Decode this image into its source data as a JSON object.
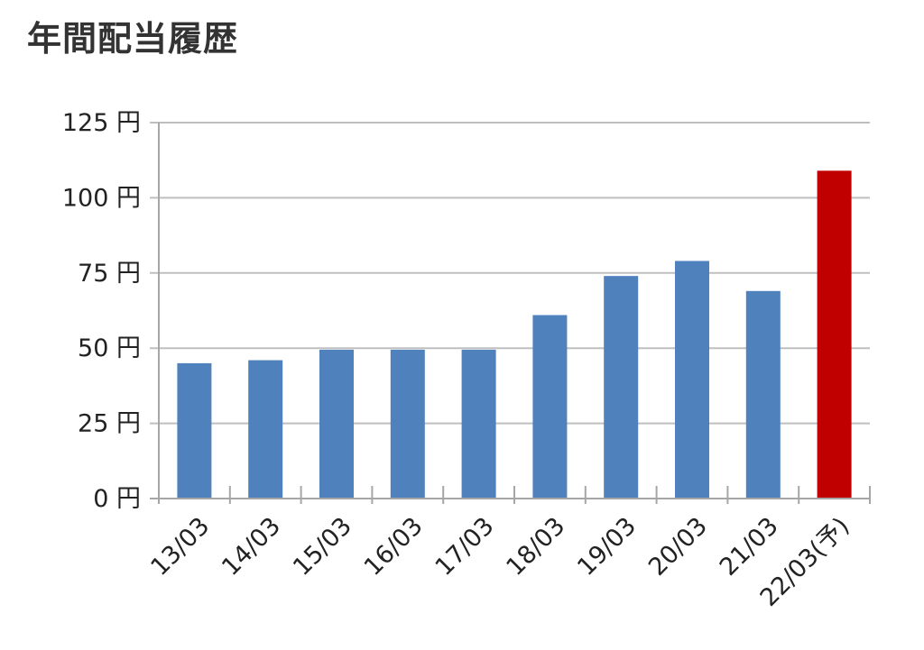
{
  "header": {
    "title": "年間配当履歴"
  },
  "chart_data": {
    "type": "bar",
    "title": "年間配当履歴",
    "categories": [
      "13/03",
      "14/03",
      "15/03",
      "16/03",
      "17/03",
      "18/03",
      "19/03",
      "20/03",
      "21/03",
      "22/03(予)"
    ],
    "values": [
      45,
      46,
      49.5,
      49.5,
      49.5,
      61,
      74,
      79,
      69,
      109
    ],
    "bar_colors": [
      "#4f81bd",
      "#4f81bd",
      "#4f81bd",
      "#4f81bd",
      "#4f81bd",
      "#4f81bd",
      "#4f81bd",
      "#4f81bd",
      "#4f81bd",
      "#c00000"
    ],
    "ylim": [
      0,
      125
    ],
    "yticks": [
      0,
      25,
      50,
      75,
      100,
      125
    ],
    "ytick_labels": [
      "0 円",
      "25 円",
      "50 円",
      "75 円",
      "100 円",
      "125 円"
    ],
    "xlabel": "",
    "ylabel": "",
    "grid": true,
    "legend": "none"
  },
  "colors": {
    "grid": "#bfbfbf",
    "axis": "#a6a6a6",
    "text": "#222222",
    "title": "#333333"
  }
}
